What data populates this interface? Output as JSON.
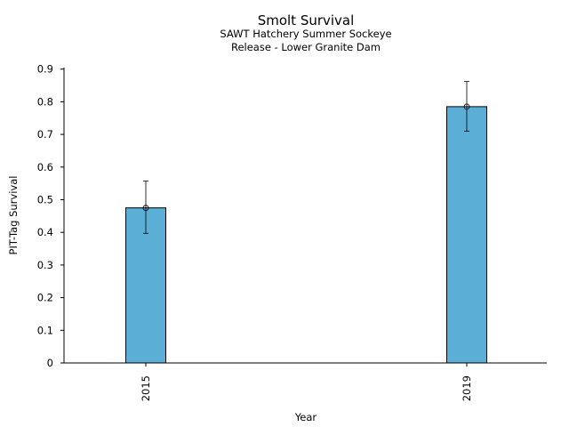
{
  "chart_data": {
    "type": "bar",
    "title": "Smolt Survival",
    "subtitle_lines": [
      "SAWT Hatchery Summer Sockeye",
      "Release - Lower Granite Dam"
    ],
    "xlabel": "Year",
    "ylabel": "PIT-Tag Survival",
    "categories": [
      "2015",
      "2019"
    ],
    "values": [
      0.475,
      0.785
    ],
    "error_lower": [
      0.397,
      0.71
    ],
    "error_upper": [
      0.557,
      0.862
    ],
    "ylim": [
      0,
      0.9
    ],
    "yticks": [
      0,
      0.1,
      0.2,
      0.3,
      0.4,
      0.5,
      0.6,
      0.7,
      0.8,
      0.9
    ],
    "ytick_labels": [
      "0",
      "0.1",
      "0.2",
      "0.3",
      "0.4",
      "0.5",
      "0.6",
      "0.7",
      "0.8",
      "0.9"
    ],
    "grid": false,
    "bar_color": "#5BAED6",
    "edge_color": "#000000"
  }
}
